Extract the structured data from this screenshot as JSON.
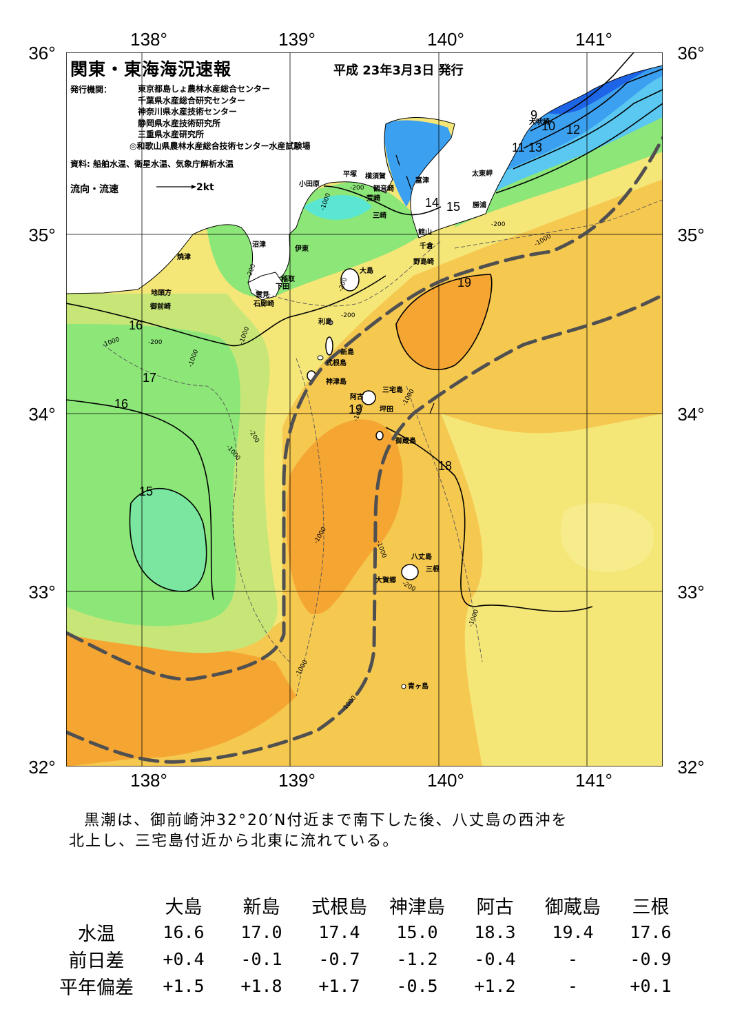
{
  "title": "関東・東海海況速報",
  "issued": "平成 23年3月3日 発行",
  "issuers_label": "発行機関：",
  "issuers": [
    "東京都島しょ農林水産総合センター",
    "千葉県水産総合研究センター",
    "神奈川県水産技術センター",
    "静岡県水産技術研究所",
    "三重県水産研究所",
    "◎和歌山県農林水産総合技術センター水産試験場"
  ],
  "sources": "資料: 船舶水温、衛星水温、気象庁解析水温",
  "flow_legend": {
    "label": "流向・流速",
    "scale": "2kt"
  },
  "map": {
    "lon_labels": [
      "138°",
      "139°",
      "140°",
      "141°"
    ],
    "lat_labels": [
      "36°",
      "35°",
      "34°",
      "33°",
      "32°"
    ],
    "lon_range": [
      137.5,
      141.5
    ],
    "lat_range": [
      32,
      36
    ],
    "place_names": {
      "inubozaki": "犬吠埼",
      "taitomisaki": "太東岬",
      "katsuura": "勝浦",
      "tateyama": "館山",
      "chikura": "千倉",
      "nojimazaki": "野島崎",
      "futtsu": "富津",
      "yokosuka": "横須賀",
      "kannonzaki": "観音崎",
      "arasaki": "荒崎",
      "misaki": "三崎",
      "hiratsuka": "平塚",
      "odawara": "小田原",
      "numazu": "沼津",
      "ito": "伊東",
      "yaizu": "焼津",
      "inatori": "稲取",
      "shimoda": "下田",
      "kumomi": "雲見",
      "irozaki": "石廊崎",
      "jitokata": "地頭方",
      "omaezaki": "御前崎",
      "oshima": "大島",
      "toshima": "利島",
      "niijima": "新島",
      "shikinejima": "式根島",
      "kozushima": "神津島",
      "miyakejima": "三宅島",
      "ako": "阿古",
      "tsubota": "坪田",
      "mikurajima": "御蔵島",
      "hachijojima": "八丈島",
      "mitsune": "三根",
      "okago": "大賀郷",
      "aogashima": "青ヶ島"
    },
    "isotherm_labels": [
      "9",
      "10",
      "12",
      "11",
      "13",
      "14",
      "15",
      "16",
      "19",
      "16",
      "17",
      "16",
      "19",
      "18",
      "15"
    ],
    "depth_labels": [
      "-200",
      "-1000"
    ]
  },
  "summary": [
    "黒潮は、御前崎沖32°20′N付近まで南下した後、八丈島の西沖を",
    "北上し、三宅島付近から北東に流れている。"
  ],
  "table": {
    "columns": [
      "大島",
      "新島",
      "式根島",
      "神津島",
      "阿古",
      "御蔵島",
      "三根"
    ],
    "rows": [
      {
        "label": "水温",
        "values": [
          "16.6",
          "17.0",
          "17.4",
          "15.0",
          "18.3",
          "19.4",
          "17.6"
        ]
      },
      {
        "label": "前日差",
        "values": [
          "+0.4",
          "-0.1",
          "-0.7",
          "-1.2",
          "-0.4",
          "-",
          "-0.9"
        ]
      },
      {
        "label": "平年偏差",
        "values": [
          "+1.5",
          "+1.8",
          "+1.7",
          "-0.5",
          "+1.2",
          "-",
          "+0.1"
        ]
      }
    ]
  },
  "colors": {
    "cold_blue": "#1e64e6",
    "blue": "#3ca0f0",
    "cyan": "#5ae6d2",
    "green": "#8ce678",
    "yellow_green": "#c8e678",
    "yellow": "#f5e678",
    "light_orange": "#f5c850",
    "orange": "#f5a532",
    "kuroshio_axis": "#505050",
    "land": "#ffffff"
  }
}
